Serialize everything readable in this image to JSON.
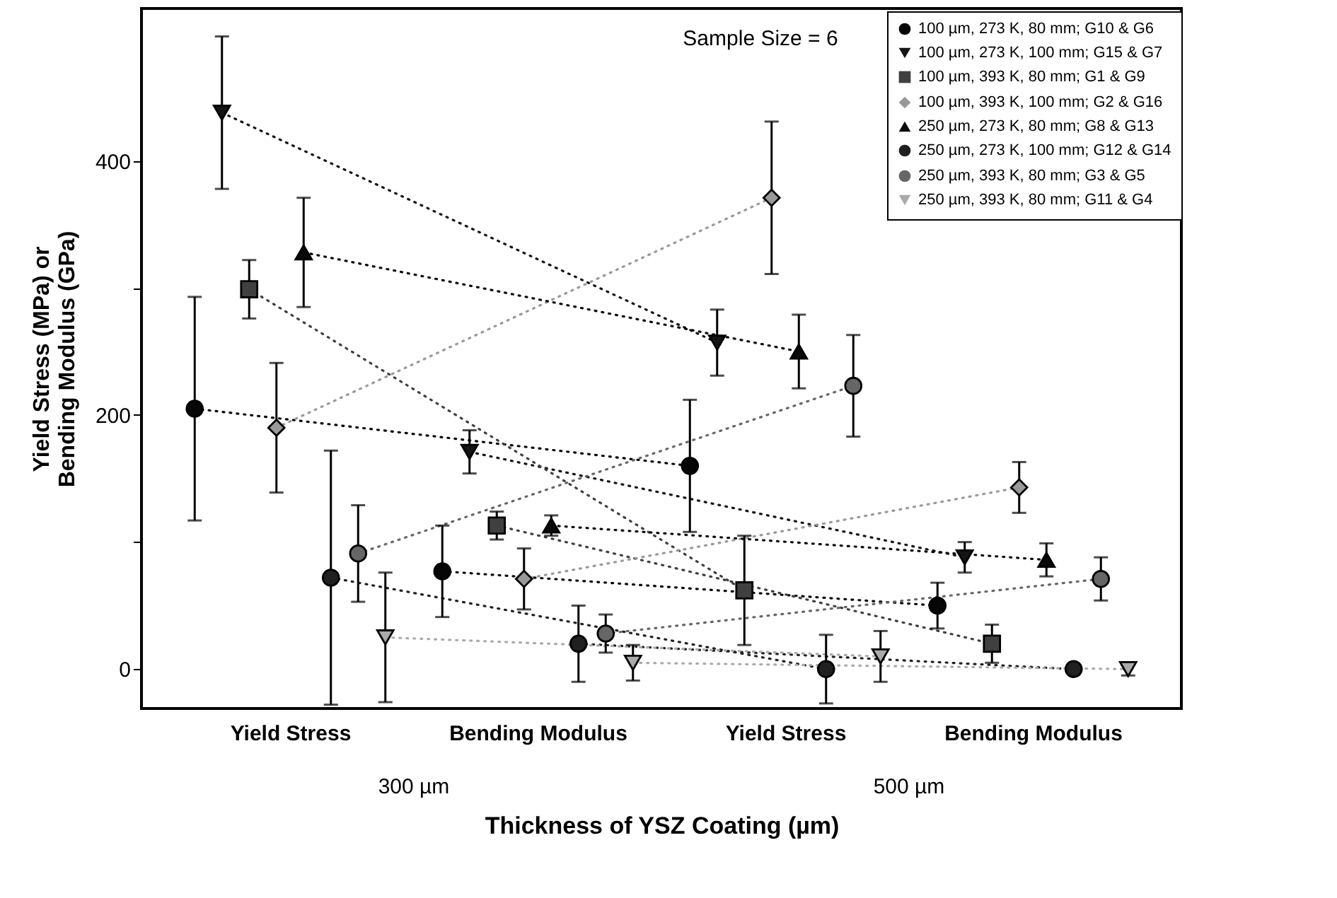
{
  "chart_data": {
    "type": "line",
    "categories": [
      "Yield Stress",
      "Bending Modulus",
      "Yield Stress",
      "Bending Modulus"
    ],
    "xlabel": "Thickness of YSZ Coating (µm)",
    "ylabel": "Yield Stress (MPa) or Bending Modulus (GPa)",
    "annotations": [
      "Sample Size = 6",
      "300 µm",
      "500 µm"
    ],
    "ylim": [
      -31,
      520
    ],
    "yticks": [
      0,
      {
        "value": 100,
        "label": null
      },
      200,
      {
        "value": 300,
        "label": null
      },
      400
    ],
    "grid": false,
    "legend": "top right",
    "line_style": "dotted",
    "series": [
      {
        "name": "100 µm, 273 K, 80 mm; G10 & G6",
        "color": "#060606",
        "marker": "circle",
        "values": [
          205,
          77,
          160,
          50
        ],
        "errors": [
          88,
          36,
          52,
          18
        ]
      },
      {
        "name": "100 µm, 273 K, 100 mm; G15 & G7",
        "color": "#141414",
        "marker": "triangle-down",
        "values": [
          438,
          171,
          257,
          88
        ],
        "errors": [
          60,
          17,
          26,
          12
        ]
      },
      {
        "name": "100 µm, 393 K, 80 mm; G1 & G9",
        "color": "#404040",
        "marker": "square",
        "values": [
          299,
          113,
          62,
          20
        ],
        "errors": [
          23,
          11,
          43,
          15
        ]
      },
      {
        "name": "100 µm, 393 K, 100 mm; G2 & G16",
        "color": "#999999",
        "marker": "diamond",
        "values": [
          190,
          71,
          371,
          143
        ],
        "errors": [
          51,
          24,
          60,
          20
        ]
      },
      {
        "name": "250 µm, 273 K, 80 mm; G8 & G13",
        "color": "#0a0a0a",
        "marker": "triangle",
        "values": [
          328,
          113,
          250,
          86
        ],
        "errors": [
          43,
          8,
          29,
          13
        ]
      },
      {
        "name": "250 µm, 273 K, 100 mm; G12 & G14",
        "color": "#202020",
        "marker": "circle",
        "values": [
          72,
          20,
          0,
          0
        ],
        "errors": [
          100,
          30,
          27,
          3
        ]
      },
      {
        "name": "250 µm, 393 K, 80 mm; G3 & G5",
        "color": "#666666",
        "marker": "circle",
        "values": [
          91,
          28,
          223,
          71
        ],
        "errors": [
          38,
          15,
          40,
          17
        ]
      },
      {
        "name": "250 µm, 393 K, 80 mm; G11 & G4",
        "color": "#aaaaaa",
        "marker": "triangle-down",
        "values": [
          25,
          5,
          10,
          0
        ],
        "errors": [
          51,
          14,
          20,
          5
        ]
      }
    ]
  }
}
